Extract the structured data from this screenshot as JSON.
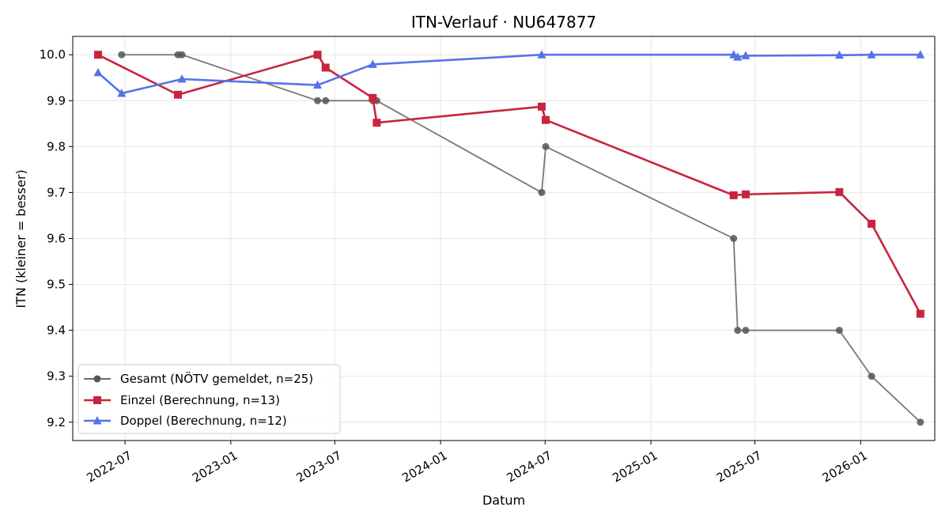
{
  "chart_data": {
    "type": "line",
    "title": "ITN-Verlauf · NU647877",
    "xlabel": "Datum",
    "ylabel": "ITN  (kleiner = besser)",
    "x_ticks": [
      "2022-07",
      "2023-01",
      "2023-07",
      "2024-01",
      "2024-07",
      "2025-01",
      "2025-07",
      "2026-01"
    ],
    "y_ticks": [
      "9.2",
      "9.3",
      "9.4",
      "9.5",
      "9.6",
      "9.7",
      "9.8",
      "9.9",
      "10.0"
    ],
    "xlim": [
      "2022-04-01",
      "2026-05-10"
    ],
    "ylim": [
      9.16,
      10.04
    ],
    "grid": true,
    "legend_position": "lower-left",
    "series": [
      {
        "name": "Gesamt (NÖTV gemeldet, n=25)",
        "color": "#555555",
        "marker": "circle",
        "points": [
          {
            "x": "2022-06-25",
            "y": 10.0
          },
          {
            "x": "2022-10-01",
            "y": 10.0
          },
          {
            "x": "2022-10-08",
            "y": 10.0
          },
          {
            "x": "2023-06-01",
            "y": 9.9
          },
          {
            "x": "2023-06-15",
            "y": 9.9
          },
          {
            "x": "2023-09-05",
            "y": 9.9
          },
          {
            "x": "2023-09-12",
            "y": 9.9
          },
          {
            "x": "2024-06-25",
            "y": 9.7
          },
          {
            "x": "2024-07-02",
            "y": 9.8
          },
          {
            "x": "2025-05-25",
            "y": 9.6
          },
          {
            "x": "2025-06-01",
            "y": 9.4
          },
          {
            "x": "2025-06-15",
            "y": 9.4
          },
          {
            "x": "2025-11-25",
            "y": 9.4
          },
          {
            "x": "2026-01-20",
            "y": 9.3
          },
          {
            "x": "2026-04-15",
            "y": 9.2
          }
        ]
      },
      {
        "name": "Einzel (Berechnung, n=13)",
        "color": "#c8243f",
        "marker": "square",
        "points": [
          {
            "x": "2022-05-15",
            "y": 10.0
          },
          {
            "x": "2022-10-01",
            "y": 9.913
          },
          {
            "x": "2023-06-01",
            "y": 10.0
          },
          {
            "x": "2023-06-15",
            "y": 9.972
          },
          {
            "x": "2023-09-05",
            "y": 9.906
          },
          {
            "x": "2023-09-12",
            "y": 9.852
          },
          {
            "x": "2024-06-25",
            "y": 9.887
          },
          {
            "x": "2024-07-02",
            "y": 9.858
          },
          {
            "x": "2025-05-25",
            "y": 9.694
          },
          {
            "x": "2025-06-15",
            "y": 9.696
          },
          {
            "x": "2025-11-25",
            "y": 9.701
          },
          {
            "x": "2026-01-20",
            "y": 9.632
          },
          {
            "x": "2026-04-15",
            "y": 9.436
          }
        ]
      },
      {
        "name": "Doppel (Berechnung, n=12)",
        "color": "#5673e8",
        "marker": "triangle",
        "points": [
          {
            "x": "2022-05-15",
            "y": 9.961
          },
          {
            "x": "2022-06-25",
            "y": 9.916
          },
          {
            "x": "2022-10-08",
            "y": 9.947
          },
          {
            "x": "2023-06-01",
            "y": 9.934
          },
          {
            "x": "2023-09-05",
            "y": 9.979
          },
          {
            "x": "2024-06-25",
            "y": 10.0
          },
          {
            "x": "2025-05-25",
            "y": 10.0
          },
          {
            "x": "2025-06-01",
            "y": 9.995
          },
          {
            "x": "2025-06-15",
            "y": 9.998
          },
          {
            "x": "2025-11-25",
            "y": 9.999
          },
          {
            "x": "2026-01-20",
            "y": 10.0
          },
          {
            "x": "2026-04-15",
            "y": 10.0
          }
        ]
      }
    ]
  }
}
